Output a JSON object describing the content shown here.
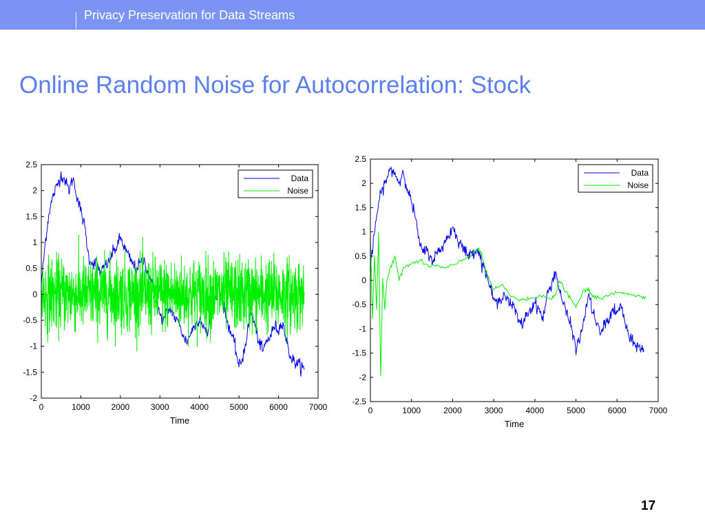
{
  "header": {
    "title": "Privacy Preservation for Data Streams"
  },
  "slide": {
    "title": "Online Random Noise for Autocorrelation: Stock",
    "page_number": "17"
  },
  "colors": {
    "banner": "#7b93f3",
    "title": "#5b7ff0",
    "data_series": "#0000e6",
    "noise_series": "#00ee00"
  },
  "chart_data": [
    {
      "type": "line",
      "xlabel": "Time",
      "ylabel": "",
      "xlim": [
        0,
        7000
      ],
      "ylim": [
        -2,
        2.5
      ],
      "x_ticks": [
        "0",
        "1000",
        "2000",
        "3000",
        "4000",
        "5000",
        "6000",
        "7000"
      ],
      "y_ticks": [
        "2.5",
        "2",
        "1.5",
        "1",
        "0.5",
        "0",
        "-0.5",
        "-1",
        "-1.5",
        "-2"
      ],
      "legend": "top-right",
      "grid": false,
      "series": [
        {
          "name": "Data",
          "color": "#0000e6",
          "x": [
            0,
            100,
            200,
            300,
            400,
            500,
            600,
            700,
            800,
            900,
            1000,
            1100,
            1200,
            1300,
            1400,
            1500,
            1600,
            1700,
            1800,
            1900,
            2000,
            2100,
            2200,
            2300,
            2400,
            2500,
            2600,
            2700,
            2800,
            2900,
            3000,
            3100,
            3200,
            3300,
            3400,
            3500,
            3600,
            3700,
            3800,
            3900,
            4000,
            4100,
            4200,
            4300,
            4400,
            4500,
            4600,
            4700,
            4800,
            4900,
            5000,
            5100,
            5200,
            5300,
            5400,
            5500,
            5600,
            5700,
            5800,
            5900,
            6000,
            6100,
            6200,
            6300,
            6400,
            6500,
            6600,
            6650
          ],
          "y": [
            0.2,
            1.0,
            1.6,
            1.9,
            2.1,
            2.3,
            2.2,
            2.0,
            2.25,
            1.9,
            1.6,
            1.3,
            0.7,
            0.6,
            0.6,
            0.4,
            0.55,
            0.6,
            0.8,
            0.9,
            1.1,
            0.9,
            0.75,
            0.6,
            0.5,
            0.6,
            0.65,
            0.4,
            0.2,
            -0.1,
            -0.4,
            -0.5,
            -0.3,
            -0.3,
            -0.5,
            -0.55,
            -0.85,
            -0.9,
            -0.7,
            -0.6,
            -0.45,
            -0.6,
            -0.8,
            -0.3,
            -0.1,
            0.2,
            -0.2,
            -0.5,
            -0.75,
            -1.0,
            -1.4,
            -1.2,
            -0.8,
            -0.3,
            -0.6,
            -0.9,
            -1.1,
            -0.9,
            -0.8,
            -0.6,
            -0.7,
            -0.5,
            -0.9,
            -1.2,
            -1.3,
            -1.35,
            -1.4,
            -1.45
          ]
        },
        {
          "name": "Noise",
          "color": "#00ee00",
          "amplitude": [
            -1.1,
            1.4
          ]
        }
      ]
    },
    {
      "type": "line",
      "xlabel": "Time",
      "ylabel": "",
      "xlim": [
        0,
        7000
      ],
      "ylim": [
        -2.5,
        2.5
      ],
      "x_ticks": [
        "0",
        "1000",
        "2000",
        "3000",
        "4000",
        "5000",
        "6000",
        "7000"
      ],
      "y_ticks": [
        "2.5",
        "2",
        "1.5",
        "1",
        "0.5",
        "0",
        "-0.5",
        "-1",
        "-1.5",
        "-2",
        "-2.5"
      ],
      "legend": "top-right",
      "grid": false,
      "series": [
        {
          "name": "Data",
          "color": "#0000e6",
          "x": [
            0,
            100,
            200,
            300,
            400,
            500,
            600,
            700,
            800,
            900,
            1000,
            1100,
            1200,
            1300,
            1400,
            1500,
            1600,
            1700,
            1800,
            1900,
            2000,
            2100,
            2200,
            2300,
            2400,
            2500,
            2600,
            2700,
            2800,
            2900,
            3000,
            3100,
            3200,
            3300,
            3400,
            3500,
            3600,
            3700,
            3800,
            3900,
            4000,
            4100,
            4200,
            4300,
            4400,
            4500,
            4600,
            4700,
            4800,
            4900,
            5000,
            5100,
            5200,
            5300,
            5400,
            5500,
            5600,
            5700,
            5800,
            5900,
            6000,
            6100,
            6200,
            6300,
            6400,
            6500,
            6600,
            6650
          ],
          "y": [
            0.2,
            1.0,
            1.6,
            1.9,
            2.1,
            2.3,
            2.2,
            2.0,
            2.25,
            1.9,
            1.6,
            1.3,
            0.7,
            0.6,
            0.6,
            0.4,
            0.55,
            0.6,
            0.8,
            0.9,
            1.1,
            0.9,
            0.75,
            0.6,
            0.5,
            0.6,
            0.65,
            0.4,
            0.2,
            -0.1,
            -0.4,
            -0.5,
            -0.3,
            -0.3,
            -0.5,
            -0.55,
            -0.85,
            -0.9,
            -0.7,
            -0.6,
            -0.45,
            -0.6,
            -0.8,
            -0.3,
            -0.1,
            0.2,
            -0.2,
            -0.5,
            -0.75,
            -1.0,
            -1.4,
            -1.2,
            -0.8,
            -0.3,
            -0.6,
            -0.9,
            -1.1,
            -0.9,
            -0.8,
            -0.6,
            -0.7,
            -0.5,
            -0.9,
            -1.2,
            -1.3,
            -1.35,
            -1.4,
            -1.45
          ]
        },
        {
          "name": "Noise",
          "color": "#00ee00",
          "x": [
            0,
            50,
            100,
            150,
            200,
            250,
            300,
            350,
            400,
            500,
            600,
            700,
            800,
            1000,
            1200,
            1400,
            1600,
            1800,
            2000,
            2200,
            2400,
            2600,
            2700,
            2800,
            3000,
            3200,
            3400,
            3600,
            3800,
            4000,
            4200,
            4400,
            4500,
            4600,
            4800,
            5000,
            5200,
            5300,
            5400,
            5600,
            5800,
            6000,
            6200,
            6400,
            6600,
            6700
          ],
          "y": [
            0.9,
            -0.8,
            0.5,
            -0.6,
            1.0,
            -2.0,
            0.0,
            -0.6,
            0.0,
            0.3,
            0.5,
            0.0,
            0.25,
            0.35,
            0.4,
            0.3,
            0.3,
            0.25,
            0.3,
            0.4,
            0.5,
            0.65,
            0.55,
            0.2,
            -0.2,
            -0.1,
            -0.3,
            -0.4,
            -0.4,
            -0.35,
            -0.3,
            -0.4,
            -0.3,
            0.0,
            -0.3,
            -0.55,
            -0.2,
            -0.2,
            -0.3,
            -0.4,
            -0.3,
            -0.25,
            -0.25,
            -0.3,
            -0.35,
            -0.35
          ]
        }
      ]
    }
  ]
}
